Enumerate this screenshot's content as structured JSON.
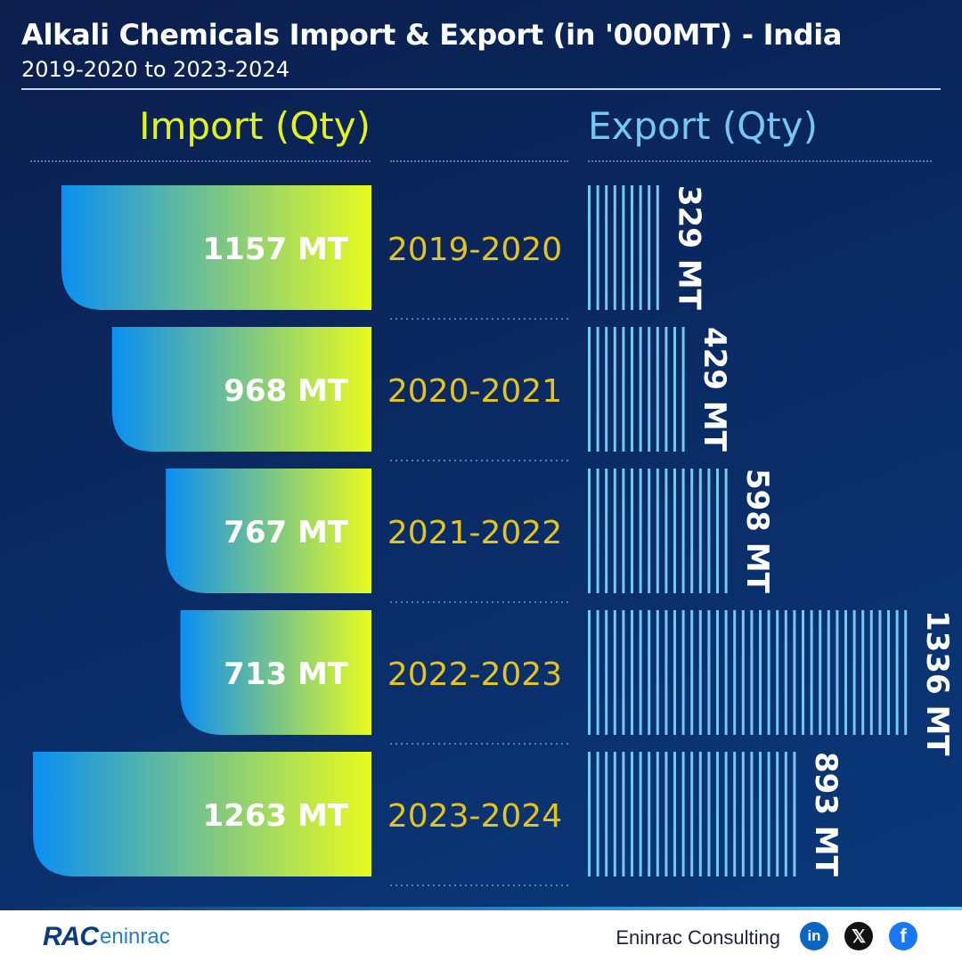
{
  "header": {
    "title": "Alkali Chemicals Import & Export (in '000MT) - India",
    "subtitle": "2019-2020 to 2023-2024"
  },
  "columns": {
    "import_label": "Import (Qty)",
    "export_label": "Export (Qty)"
  },
  "colors": {
    "import_gradient_start": "#0a8ff2",
    "import_gradient_end": "#e8fb1e",
    "year_label": "#e6c21c",
    "export_stripe": "#74c8f4",
    "import_header": "#e3f21a",
    "export_header": "#74c8f4"
  },
  "chart_data": {
    "type": "bar",
    "categories": [
      "2019-2020",
      "2020-2021",
      "2021-2022",
      "2022-2023",
      "2023-2024"
    ],
    "series": [
      {
        "name": "Import (Qty)",
        "values": [
          1157,
          968,
          767,
          713,
          1263
        ],
        "labels": [
          "1157 MT",
          "968 MT",
          "767 MT",
          "713 MT",
          "1263 MT"
        ]
      },
      {
        "name": "Export (Qty)",
        "values": [
          329,
          429,
          598,
          1336,
          893
        ],
        "labels": [
          "329 MT",
          "429 MT",
          "598 MT",
          "1336 MT",
          "893 MT"
        ]
      }
    ],
    "title": "Alkali Chemicals Import & Export (in '000MT) - India",
    "subtitle": "2019-2020 to 2023-2024"
  },
  "footer": {
    "logo_mark": "RAC",
    "logo_word": "eninrac",
    "company": "Eninrac Consulting",
    "social": [
      {
        "icon": "linkedin-icon",
        "glyph": "in"
      },
      {
        "icon": "x-icon",
        "glyph": "𝕏"
      },
      {
        "icon": "facebook-icon",
        "glyph": "f"
      }
    ]
  }
}
